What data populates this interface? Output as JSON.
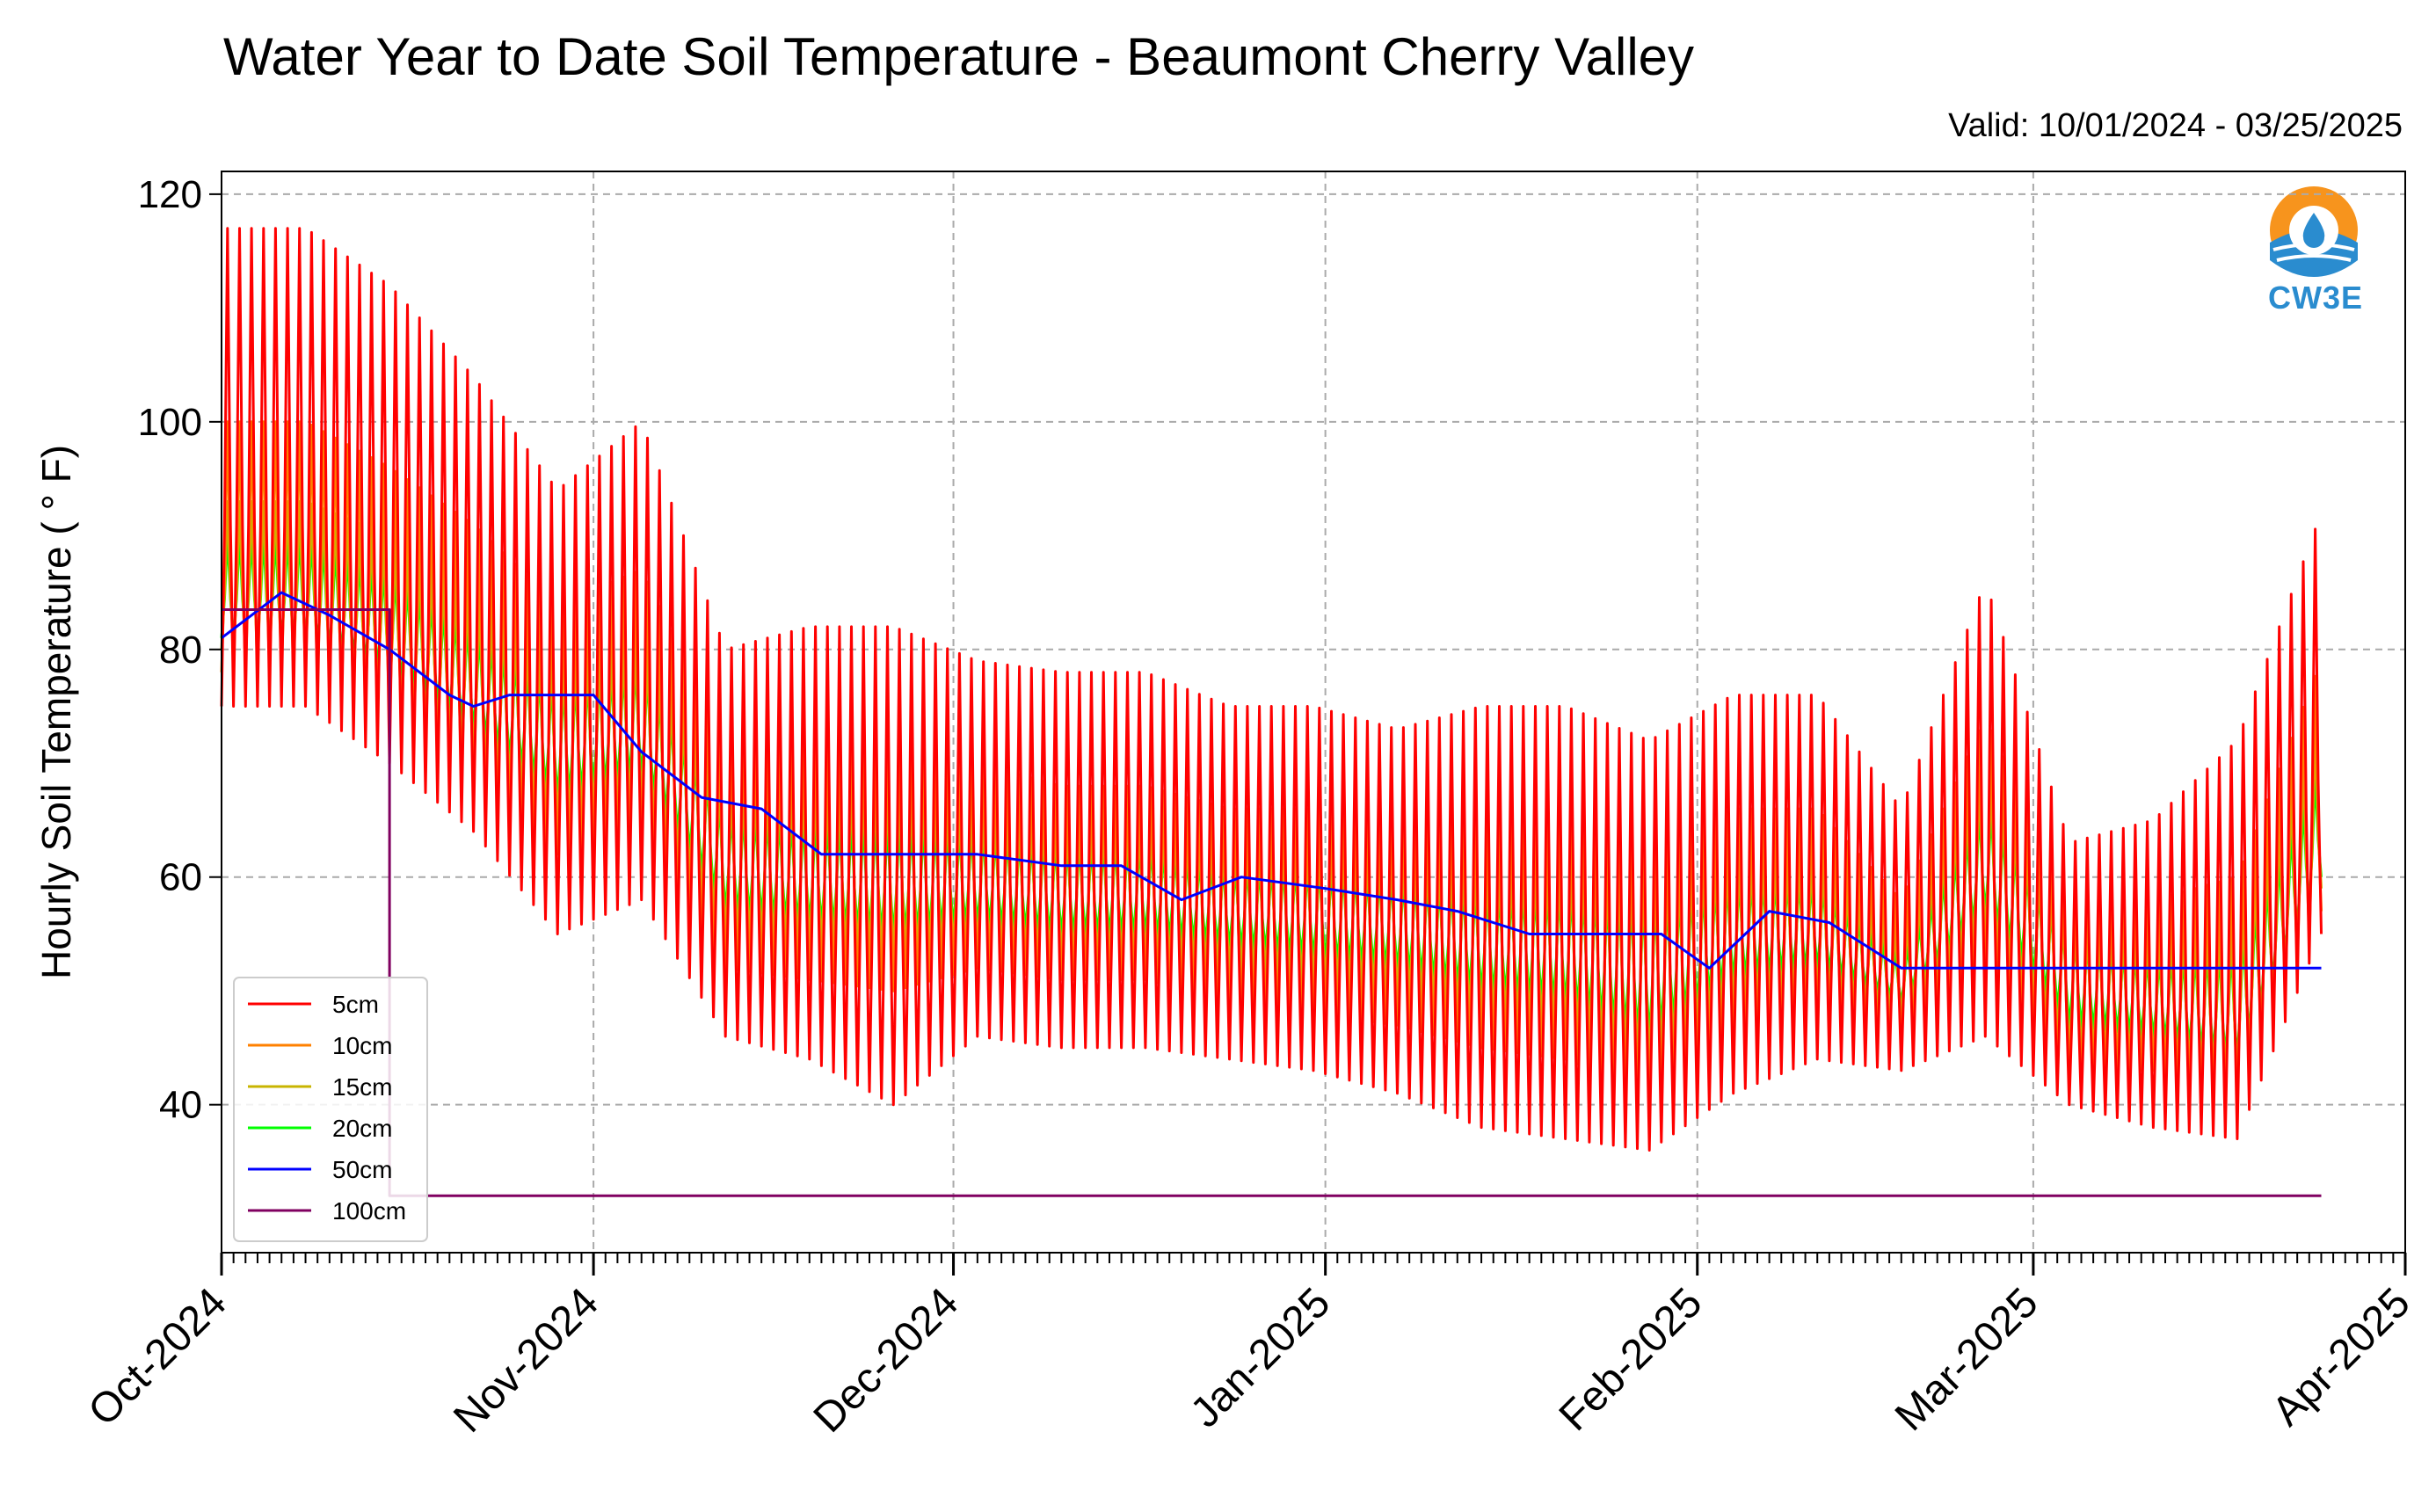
{
  "header": {
    "title": "Water Year to Date Soil Temperature - Beaumont Cherry Valley",
    "valid": "Valid: 10/01/2024 - 03/25/2025"
  },
  "logo": {
    "text": "CW3E",
    "icon": "water-drop-logo-icon",
    "colors": [
      "#f7941d",
      "#2a8ccf"
    ]
  },
  "chart_data": {
    "type": "line",
    "title": "Water Year to Date Soil Temperature - Beaumont Cherry Valley",
    "subtitle": "Valid: 10/01/2024 - 03/25/2025",
    "ylabel": "Hourly Soil Temperature ( ° F)",
    "xlabel": "",
    "ylim": [
      27,
      122
    ],
    "xlim": [
      "2024-10-01",
      "2025-04-01"
    ],
    "yticks": [
      40,
      60,
      80,
      100,
      120
    ],
    "xticks": [
      "Oct-2024",
      "Nov-2024",
      "Dec-2024",
      "Jan-2025",
      "Feb-2025",
      "Mar-2025",
      "Apr-2025"
    ],
    "grid": true,
    "legend_position": "lower-left",
    "series": [
      {
        "name": "5cm",
        "color": "#ff0000",
        "note": "Hourly diurnal cycle; approximate daily maximum / minimum read from chart",
        "daily_range": [
          [
            "2024-10-01",
            117,
            75
          ],
          [
            "2024-10-08",
            117,
            75
          ],
          [
            "2024-10-15",
            112,
            70
          ],
          [
            "2024-10-22",
            104,
            64
          ],
          [
            "2024-10-29",
            94,
            55
          ],
          [
            "2024-11-05",
            100,
            58
          ],
          [
            "2024-11-12",
            80,
            46
          ],
          [
            "2024-11-19",
            82,
            44
          ],
          [
            "2024-11-26",
            82,
            40
          ],
          [
            "2024-12-03",
            79,
            46
          ],
          [
            "2024-12-10",
            78,
            45
          ],
          [
            "2024-12-17",
            78,
            45
          ],
          [
            "2024-12-24",
            75,
            44
          ],
          [
            "2024-12-31",
            75,
            43
          ],
          [
            "2025-01-07",
            73,
            41
          ],
          [
            "2025-01-14",
            75,
            38
          ],
          [
            "2025-01-21",
            75,
            37
          ],
          [
            "2025-01-28",
            72,
            36
          ],
          [
            "2025-02-04",
            76,
            41
          ],
          [
            "2025-02-11",
            76,
            44
          ],
          [
            "2025-02-18",
            66,
            43
          ],
          [
            "2025-02-25",
            86,
            46
          ],
          [
            "2025-03-04",
            63,
            40
          ],
          [
            "2025-03-11",
            65,
            38
          ],
          [
            "2025-03-18",
            72,
            37
          ],
          [
            "2025-03-25",
            92,
            55
          ]
        ]
      },
      {
        "name": "10cm",
        "color": "#ff8000",
        "note": "Hourly diurnal cycle; approximate daily maximum / minimum read from chart",
        "daily_range": [
          [
            "2024-10-01",
            100,
            78
          ],
          [
            "2024-10-08",
            100,
            78
          ],
          [
            "2024-10-15",
            96,
            74
          ],
          [
            "2024-10-22",
            91,
            68
          ],
          [
            "2024-10-29",
            84,
            62
          ],
          [
            "2024-11-05",
            87,
            64
          ],
          [
            "2024-11-12",
            72,
            52
          ],
          [
            "2024-11-19",
            72,
            51
          ],
          [
            "2024-11-26",
            72,
            50
          ],
          [
            "2024-12-03",
            70,
            52
          ],
          [
            "2024-12-10",
            68,
            51
          ],
          [
            "2024-12-17",
            68,
            51
          ],
          [
            "2024-12-24",
            66,
            49
          ],
          [
            "2024-12-31",
            66,
            48
          ],
          [
            "2025-01-07",
            65,
            47
          ],
          [
            "2025-01-14",
            65,
            45
          ],
          [
            "2025-01-21",
            65,
            44
          ],
          [
            "2025-01-28",
            63,
            41
          ],
          [
            "2025-02-04",
            66,
            46
          ],
          [
            "2025-02-11",
            66,
            48
          ],
          [
            "2025-02-18",
            58,
            46
          ],
          [
            "2025-02-25",
            74,
            52
          ],
          [
            "2025-03-04",
            58,
            43
          ],
          [
            "2025-03-11",
            58,
            43
          ],
          [
            "2025-03-18",
            60,
            41
          ],
          [
            "2025-03-25",
            79,
            57
          ]
        ]
      },
      {
        "name": "15cm",
        "color": "#c8b400",
        "note": "Hourly diurnal cycle; approximate daily maximum / minimum read from chart",
        "daily_range": [
          [
            "2024-10-01",
            93,
            80
          ],
          [
            "2024-10-08",
            93,
            80
          ],
          [
            "2024-10-15",
            90,
            76
          ],
          [
            "2024-10-22",
            85,
            71
          ],
          [
            "2024-10-29",
            79,
            65
          ],
          [
            "2024-11-05",
            81,
            67
          ],
          [
            "2024-11-12",
            68,
            55
          ],
          [
            "2024-11-19",
            68,
            54
          ],
          [
            "2024-11-26",
            68,
            53
          ],
          [
            "2024-12-03",
            66,
            54
          ],
          [
            "2024-12-10",
            65,
            53
          ],
          [
            "2024-12-17",
            65,
            53
          ],
          [
            "2024-12-24",
            63,
            52
          ],
          [
            "2024-12-31",
            63,
            51
          ],
          [
            "2025-01-07",
            62,
            50
          ],
          [
            "2025-01-14",
            61,
            48
          ],
          [
            "2025-01-21",
            61,
            47
          ],
          [
            "2025-01-28",
            60,
            44
          ],
          [
            "2025-02-04",
            62,
            49
          ],
          [
            "2025-02-11",
            62,
            50
          ],
          [
            "2025-02-18",
            55,
            48
          ],
          [
            "2025-02-25",
            70,
            55
          ],
          [
            "2025-03-04",
            56,
            45
          ],
          [
            "2025-03-11",
            55,
            44
          ],
          [
            "2025-03-18",
            56,
            43
          ],
          [
            "2025-03-25",
            74,
            59
          ]
        ]
      },
      {
        "name": "20cm",
        "color": "#00ff00",
        "note": "Hourly diurnal cycle; approximate daily maximum / minimum read from chart",
        "daily_range": [
          [
            "2024-10-01",
            90,
            81
          ],
          [
            "2024-10-08",
            90,
            81
          ],
          [
            "2024-10-15",
            87,
            78
          ],
          [
            "2024-10-22",
            82,
            73
          ],
          [
            "2024-10-29",
            77,
            67
          ],
          [
            "2024-11-05",
            79,
            69
          ],
          [
            "2024-11-12",
            66,
            57
          ],
          [
            "2024-11-19",
            65,
            56
          ],
          [
            "2024-11-26",
            65,
            55
          ],
          [
            "2024-12-03",
            64,
            56
          ],
          [
            "2024-12-10",
            63,
            55
          ],
          [
            "2024-12-17",
            63,
            55
          ],
          [
            "2024-12-24",
            61,
            54
          ],
          [
            "2024-12-31",
            61,
            53
          ],
          [
            "2025-01-07",
            60,
            52
          ],
          [
            "2025-01-14",
            59,
            50
          ],
          [
            "2025-01-21",
            59,
            49
          ],
          [
            "2025-01-28",
            58,
            46
          ],
          [
            "2025-02-04",
            60,
            51
          ],
          [
            "2025-02-11",
            60,
            52
          ],
          [
            "2025-02-18",
            53,
            49
          ],
          [
            "2025-02-25",
            67,
            57
          ],
          [
            "2025-03-04",
            55,
            47
          ],
          [
            "2025-03-11",
            53,
            46
          ],
          [
            "2025-03-18",
            54,
            44
          ],
          [
            "2025-03-25",
            70,
            60
          ]
        ]
      },
      {
        "name": "50cm",
        "color": "#0000ff",
        "x": [
          "2024-10-01",
          "2024-10-06",
          "2024-10-10",
          "2024-10-15",
          "2024-10-20",
          "2024-10-22",
          "2024-10-25",
          "2024-11-01",
          "2024-11-05",
          "2024-11-10",
          "2024-11-15",
          "2024-11-20",
          "2024-11-25",
          "2024-12-03",
          "2024-12-10",
          "2024-12-15",
          "2024-12-20",
          "2024-12-25",
          "2025-01-01",
          "2025-01-07",
          "2025-01-12",
          "2025-01-18",
          "2025-01-25",
          "2025-01-29",
          "2025-02-02",
          "2025-02-07",
          "2025-02-12",
          "2025-02-15",
          "2025-02-18",
          "2025-03-25"
        ],
        "values": [
          81,
          85,
          83,
          80,
          76,
          75,
          76,
          76,
          71,
          67,
          66,
          62,
          62,
          62,
          61,
          61,
          58,
          60,
          59,
          58,
          57,
          55,
          55,
          55,
          52,
          57,
          56,
          54,
          52,
          52
        ]
      },
      {
        "name": "100cm",
        "color": "#800060",
        "x": [
          "2024-10-01",
          "2024-10-15",
          "2024-10-15",
          "2025-03-25"
        ],
        "values": [
          83.5,
          83.5,
          32,
          32
        ]
      }
    ]
  }
}
